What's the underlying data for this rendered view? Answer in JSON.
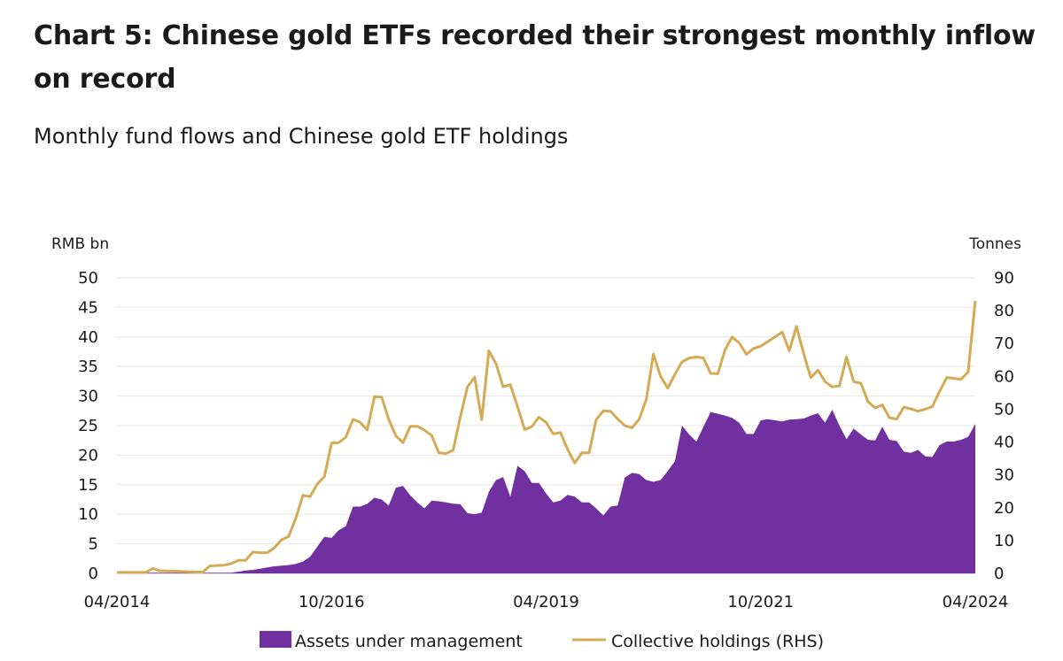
{
  "title": "Chart 5: Chinese gold ETFs recorded their strongest monthly inflow on record",
  "subtitle": "Monthly fund flows and Chinese gold ETF holdings",
  "colors": {
    "area": "#7030a0",
    "line": "#d4aa55",
    "grid": "#e6e6e6"
  },
  "chart_data": {
    "type": "area",
    "left_axis_label": "RMB bn",
    "right_axis_label": "Tonnes",
    "ylim_left": [
      0,
      50
    ],
    "ylim_right": [
      0,
      90
    ],
    "yticks_left": [
      "0",
      "5",
      "10",
      "15",
      "20",
      "25",
      "30",
      "35",
      "40",
      "45",
      "50"
    ],
    "yticks_right": [
      "0",
      "10",
      "20",
      "30",
      "40",
      "50",
      "60",
      "70",
      "80",
      "90"
    ],
    "x_ticks": [
      "04/2014",
      "10/2016",
      "04/2019",
      "10/2021",
      "04/2024"
    ],
    "x_range": [
      "04/2014",
      "04/2024"
    ],
    "grid": "horizontal",
    "legend_position": "bottom",
    "series": [
      {
        "name": "Assets under management",
        "type": "area",
        "axis": "left",
        "unit": "RMB bn",
        "points": [
          [
            "04/2014",
            0.1
          ],
          [
            "05/2014",
            0.1
          ],
          [
            "06/2014",
            0.1
          ],
          [
            "07/2014",
            0.1
          ],
          [
            "08/2014",
            0.1
          ],
          [
            "09/2014",
            0.1
          ],
          [
            "10/2014",
            0.1
          ],
          [
            "11/2014",
            0.1
          ],
          [
            "12/2014",
            0.1
          ],
          [
            "01/2015",
            0.1
          ],
          [
            "02/2015",
            0.1
          ],
          [
            "03/2015",
            0.1
          ],
          [
            "04/2015",
            0.1
          ],
          [
            "05/2015",
            0.1
          ],
          [
            "06/2015",
            0.1
          ],
          [
            "07/2015",
            0.1
          ],
          [
            "08/2015",
            0.1
          ],
          [
            "09/2015",
            0.3
          ],
          [
            "10/2015",
            0.5
          ],
          [
            "11/2015",
            0.6
          ],
          [
            "12/2015",
            0.8
          ],
          [
            "01/2016",
            1.0
          ],
          [
            "02/2016",
            1.2
          ],
          [
            "03/2016",
            1.3
          ],
          [
            "04/2016",
            1.4
          ],
          [
            "05/2016",
            1.6
          ],
          [
            "06/2016",
            2.0
          ],
          [
            "07/2016",
            2.8
          ],
          [
            "08/2016",
            4.5
          ],
          [
            "09/2016",
            6.2
          ],
          [
            "10/2016",
            6.0
          ],
          [
            "11/2016",
            7.3
          ],
          [
            "12/2016",
            8.0
          ],
          [
            "01/2017",
            11.3
          ],
          [
            "02/2017",
            11.3
          ],
          [
            "03/2017",
            11.8
          ],
          [
            "04/2017",
            12.8
          ],
          [
            "05/2017",
            12.5
          ],
          [
            "06/2017",
            11.5
          ],
          [
            "07/2017",
            14.5
          ],
          [
            "08/2017",
            14.8
          ],
          [
            "09/2017",
            13.2
          ],
          [
            "10/2017",
            12.0
          ],
          [
            "11/2017",
            11.0
          ],
          [
            "12/2017",
            12.3
          ],
          [
            "01/2018",
            12.2
          ],
          [
            "02/2018",
            12.0
          ],
          [
            "03/2018",
            11.8
          ],
          [
            "04/2018",
            11.7
          ],
          [
            "05/2018",
            10.2
          ],
          [
            "06/2018",
            10.0
          ],
          [
            "07/2018",
            10.3
          ],
          [
            "08/2018",
            13.8
          ],
          [
            "09/2018",
            15.8
          ],
          [
            "10/2018",
            16.3
          ],
          [
            "11/2018",
            13.0
          ],
          [
            "12/2018",
            18.2
          ],
          [
            "01/2019",
            17.3
          ],
          [
            "02/2019",
            15.3
          ],
          [
            "03/2019",
            15.3
          ],
          [
            "04/2019",
            13.5
          ],
          [
            "05/2019",
            12.0
          ],
          [
            "06/2019",
            12.3
          ],
          [
            "07/2019",
            13.3
          ],
          [
            "08/2019",
            13.0
          ],
          [
            "09/2019",
            12.0
          ],
          [
            "10/2019",
            12.0
          ],
          [
            "11/2019",
            11.0
          ],
          [
            "12/2019",
            9.8
          ],
          [
            "01/2020",
            11.3
          ],
          [
            "02/2020",
            11.5
          ],
          [
            "03/2020",
            16.2
          ],
          [
            "04/2020",
            17.0
          ],
          [
            "05/2020",
            16.8
          ],
          [
            "06/2020",
            15.8
          ],
          [
            "07/2020",
            15.5
          ],
          [
            "08/2020",
            15.8
          ],
          [
            "09/2020",
            17.3
          ],
          [
            "10/2020",
            19.0
          ],
          [
            "11/2020",
            25.0
          ],
          [
            "12/2020",
            23.5
          ],
          [
            "01/2021",
            22.3
          ],
          [
            "02/2021",
            24.8
          ],
          [
            "03/2021",
            27.3
          ],
          [
            "04/2021",
            27.0
          ],
          [
            "05/2021",
            26.7
          ],
          [
            "06/2021",
            26.3
          ],
          [
            "07/2021",
            25.5
          ],
          [
            "08/2021",
            23.6
          ],
          [
            "09/2021",
            23.6
          ],
          [
            "10/2021",
            25.9
          ],
          [
            "11/2021",
            26.1
          ],
          [
            "12/2021",
            25.9
          ],
          [
            "01/2022",
            25.7
          ],
          [
            "02/2022",
            26.0
          ],
          [
            "03/2022",
            26.1
          ],
          [
            "04/2022",
            26.2
          ],
          [
            "05/2022",
            26.7
          ],
          [
            "06/2022",
            27.1
          ],
          [
            "07/2022",
            25.5
          ],
          [
            "08/2022",
            27.7
          ],
          [
            "09/2022",
            25.0
          ],
          [
            "10/2022",
            22.7
          ],
          [
            "11/2022",
            24.5
          ],
          [
            "12/2022",
            23.5
          ],
          [
            "01/2023",
            22.6
          ],
          [
            "02/2023",
            22.5
          ],
          [
            "03/2023",
            24.8
          ],
          [
            "04/2023",
            22.6
          ],
          [
            "05/2023",
            22.4
          ],
          [
            "06/2023",
            20.6
          ],
          [
            "07/2023",
            20.4
          ],
          [
            "08/2023",
            20.9
          ],
          [
            "09/2023",
            19.8
          ],
          [
            "10/2023",
            19.7
          ],
          [
            "11/2023",
            21.7
          ],
          [
            "12/2023",
            22.3
          ],
          [
            "01/2024",
            22.3
          ],
          [
            "02/2024",
            22.6
          ],
          [
            "03/2024",
            23.1
          ],
          [
            "04/2024",
            25.3
          ]
        ]
      },
      {
        "name": "Collective holdings (RHS)",
        "type": "line",
        "axis": "right",
        "unit": "Tonnes",
        "points": [
          [
            "04/2014",
            0.3
          ],
          [
            "05/2014",
            0.3
          ],
          [
            "06/2014",
            0.3
          ],
          [
            "07/2014",
            0.3
          ],
          [
            "08/2014",
            0.3
          ],
          [
            "09/2014",
            1.5
          ],
          [
            "10/2014",
            0.8
          ],
          [
            "11/2014",
            0.7
          ],
          [
            "12/2014",
            0.7
          ],
          [
            "01/2015",
            0.6
          ],
          [
            "02/2015",
            0.5
          ],
          [
            "03/2015",
            0.4
          ],
          [
            "04/2015",
            0.4
          ],
          [
            "05/2015",
            2.3
          ],
          [
            "06/2015",
            2.4
          ],
          [
            "07/2015",
            2.5
          ],
          [
            "08/2015",
            3.0
          ],
          [
            "09/2015",
            4.0
          ],
          [
            "10/2015",
            4.0
          ],
          [
            "11/2015",
            6.5
          ],
          [
            "12/2015",
            6.3
          ],
          [
            "01/2016",
            6.3
          ],
          [
            "02/2016",
            7.8
          ],
          [
            "03/2016",
            10.2
          ],
          [
            "04/2016",
            11.2
          ],
          [
            "05/2016",
            16.8
          ],
          [
            "06/2016",
            23.8
          ],
          [
            "07/2016",
            23.4
          ],
          [
            "08/2016",
            27.2
          ],
          [
            "09/2016",
            29.5
          ],
          [
            "10/2016",
            39.7
          ],
          [
            "11/2016",
            39.8
          ],
          [
            "12/2016",
            41.5
          ],
          [
            "01/2017",
            46.9
          ],
          [
            "02/2017",
            46.0
          ],
          [
            "03/2017",
            43.7
          ],
          [
            "04/2017",
            53.8
          ],
          [
            "05/2017",
            53.7
          ],
          [
            "06/2017",
            46.9
          ],
          [
            "07/2017",
            41.9
          ],
          [
            "08/2017",
            39.8
          ],
          [
            "09/2017",
            44.8
          ],
          [
            "10/2017",
            44.8
          ],
          [
            "11/2017",
            43.6
          ],
          [
            "12/2017",
            42.0
          ],
          [
            "01/2018",
            36.7
          ],
          [
            "02/2018",
            36.5
          ],
          [
            "03/2018",
            37.5
          ],
          [
            "04/2018",
            47.6
          ],
          [
            "05/2018",
            56.8
          ],
          [
            "06/2018",
            59.8
          ],
          [
            "07/2018",
            46.8
          ],
          [
            "08/2018",
            67.8
          ],
          [
            "09/2018",
            63.8
          ],
          [
            "10/2018",
            56.8
          ],
          [
            "11/2018",
            57.5
          ],
          [
            "12/2018",
            50.8
          ],
          [
            "01/2019",
            43.8
          ],
          [
            "02/2019",
            44.7
          ],
          [
            "03/2019",
            47.6
          ],
          [
            "04/2019",
            46.0
          ],
          [
            "05/2019",
            42.5
          ],
          [
            "06/2019",
            42.9
          ],
          [
            "07/2019",
            37.8
          ],
          [
            "08/2019",
            33.6
          ],
          [
            "09/2019",
            36.7
          ],
          [
            "10/2019",
            36.7
          ],
          [
            "11/2019",
            46.8
          ],
          [
            "12/2019",
            49.5
          ],
          [
            "01/2020",
            49.4
          ],
          [
            "02/2020",
            47.0
          ],
          [
            "03/2020",
            45.0
          ],
          [
            "04/2020",
            44.3
          ],
          [
            "05/2020",
            46.9
          ],
          [
            "06/2020",
            53.0
          ],
          [
            "07/2020",
            66.8
          ],
          [
            "08/2020",
            60.0
          ],
          [
            "09/2020",
            56.4
          ],
          [
            "10/2020",
            60.6
          ],
          [
            "11/2020",
            64.4
          ],
          [
            "12/2020",
            65.6
          ],
          [
            "01/2021",
            65.9
          ],
          [
            "02/2021",
            65.6
          ],
          [
            "03/2021",
            60.9
          ],
          [
            "04/2021",
            60.8
          ],
          [
            "05/2021",
            68.0
          ],
          [
            "06/2021",
            72.0
          ],
          [
            "07/2021",
            70.2
          ],
          [
            "08/2021",
            66.7
          ],
          [
            "09/2021",
            68.5
          ],
          [
            "10/2021",
            69.2
          ],
          [
            "11/2021",
            70.6
          ],
          [
            "12/2021",
            72.0
          ],
          [
            "01/2022",
            73.5
          ],
          [
            "02/2022",
            67.8
          ],
          [
            "03/2022",
            75.2
          ],
          [
            "04/2022",
            67.0
          ],
          [
            "05/2022",
            59.6
          ],
          [
            "06/2022",
            61.9
          ],
          [
            "07/2022",
            58.4
          ],
          [
            "08/2022",
            56.8
          ],
          [
            "09/2022",
            57.1
          ],
          [
            "10/2022",
            65.9
          ],
          [
            "11/2022",
            58.4
          ],
          [
            "12/2022",
            57.9
          ],
          [
            "01/2023",
            52.3
          ],
          [
            "02/2023",
            50.4
          ],
          [
            "03/2023",
            51.3
          ],
          [
            "04/2023",
            47.4
          ],
          [
            "05/2023",
            47.0
          ],
          [
            "06/2023",
            50.6
          ],
          [
            "07/2023",
            50.1
          ],
          [
            "08/2023",
            49.4
          ],
          [
            "09/2023",
            50.0
          ],
          [
            "10/2023",
            50.8
          ],
          [
            "11/2023",
            55.4
          ],
          [
            "12/2023",
            59.6
          ],
          [
            "01/2024",
            59.4
          ],
          [
            "02/2024",
            59.1
          ],
          [
            "03/2024",
            61.3
          ],
          [
            "04/2024",
            83.0
          ]
        ]
      }
    ]
  }
}
